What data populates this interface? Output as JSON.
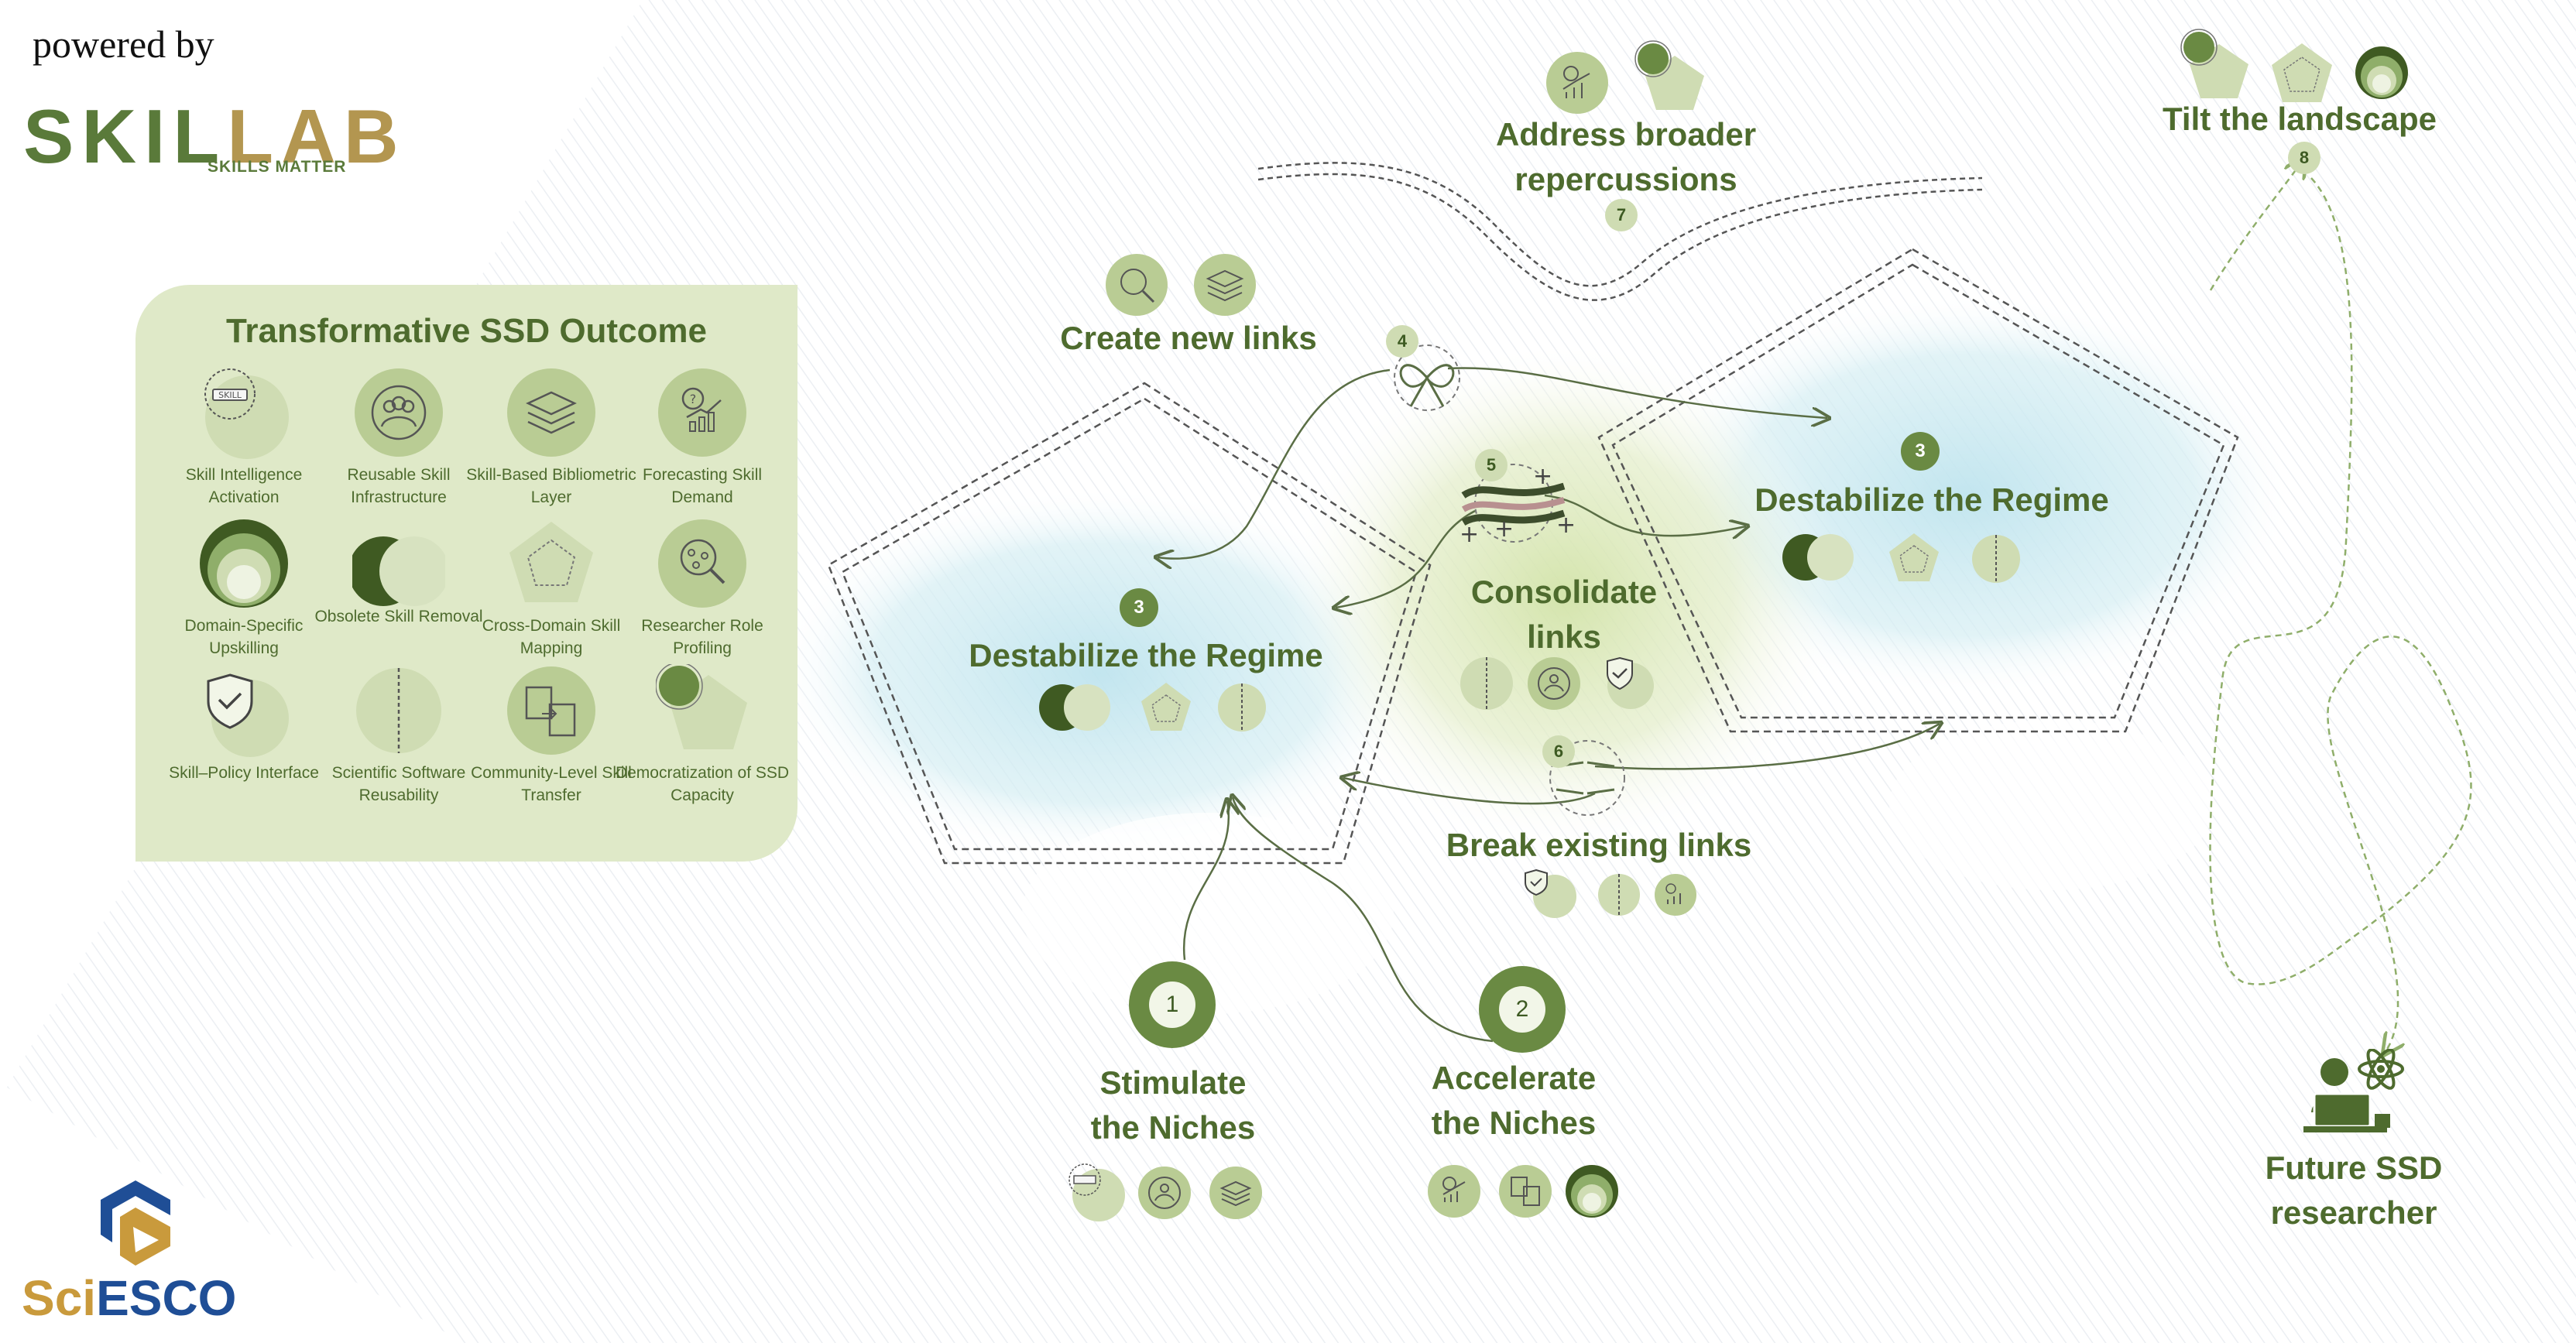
{
  "branding": {
    "powered_by": "powered by",
    "skilab_prefix": "SKIL",
    "skilab_suffix": "LAB",
    "skilab_tagline": "SKILLS MATTER",
    "sciesco_prefix": "Sci",
    "sciesco_suffix": "ESCO"
  },
  "colors": {
    "dark_green": "#4e6b2e",
    "medium_green": "#6a8a43",
    "light_green": "#cfdcb3",
    "panel_bg": "#dfe9c8",
    "blue_glow": "#bfe4ee",
    "sciesco_gold": "#c99a3c",
    "sciesco_blue": "#1f4e96"
  },
  "panel": {
    "title": "Transformative SSD Outcome",
    "items": [
      {
        "label": "Skill Intelligence Activation",
        "icon": "skill-badge-icon"
      },
      {
        "label": "Reusable Skill Infrastructure",
        "icon": "people-group-icon"
      },
      {
        "label": "Skill-Based Bibliometric Layer",
        "icon": "stacked-layers-icon"
      },
      {
        "label": "Forecasting Skill Demand",
        "icon": "chart-question-icon"
      },
      {
        "label": "Domain-Specific Upskilling",
        "icon": "nested-circles-icon"
      },
      {
        "label": "Obsolete Skill Removal",
        "icon": "eclipse-circles-icon"
      },
      {
        "label": "Cross-Domain Skill Mapping",
        "icon": "pentagon-icon"
      },
      {
        "label": "Researcher Role Profiling",
        "icon": "magnifier-network-icon"
      },
      {
        "label": "Skill–Policy Interface",
        "icon": "shield-check-icon"
      },
      {
        "label": "Scientific Software Reusability",
        "icon": "dashed-divider-icon"
      },
      {
        "label": "Community-Level Skill Transfer",
        "icon": "document-exchange-icon"
      },
      {
        "label": "Democratization of SSD Capacity",
        "icon": "pentagon-dot-icon"
      }
    ]
  },
  "steps": {
    "stimulate": {
      "number": "1",
      "label_line1": "Stimulate",
      "label_line2": "the Niches"
    },
    "accelerate": {
      "number": "2",
      "label_line1": "Accelerate",
      "label_line2": "the Niches"
    },
    "destabilize_left": {
      "number": "3",
      "label": "Destabilize the Regime"
    },
    "destabilize_right": {
      "number": "3",
      "label": "Destabilize the Regime"
    },
    "create_links": {
      "number": "4",
      "label": "Create new links"
    },
    "consolidate": {
      "number": "5",
      "label_line1": "Consolidate",
      "label_line2": "links"
    },
    "break_links": {
      "number": "6",
      "label": "Break existing links"
    },
    "repercussions": {
      "number": "7",
      "label_line1": "Address broader",
      "label_line2": "repercussions"
    },
    "tilt": {
      "number": "8",
      "label": "Tilt the landscape"
    },
    "researcher": {
      "label_line1": "Future SSD",
      "label_line2": "researcher"
    }
  }
}
